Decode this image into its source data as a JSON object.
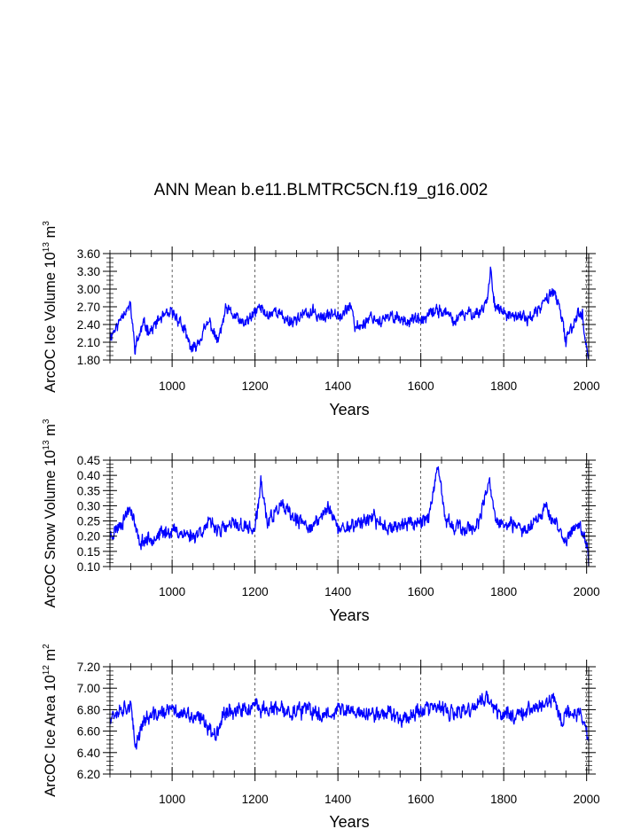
{
  "figure_title": "ANN Mean b.e11.BLMTRC5CN.f19_g16.002",
  "colors": {
    "series": "#0000ff",
    "axis": "#000000",
    "grid": "#000000"
  },
  "chart_data": [
    {
      "type": "line",
      "ylabel": {
        "prefix": "ArcOC Ice Volume 10",
        "exp": "13",
        "mid": " m",
        "unit_exp": "3"
      },
      "xlabel": "Years",
      "xlim": [
        850,
        2005
      ],
      "ylim": [
        1.8,
        3.6
      ],
      "xticks": [
        1000,
        1200,
        1400,
        1600,
        1800,
        2000
      ],
      "xtick_labels": [
        "1000",
        "1200",
        "1400",
        "1600",
        "1800",
        "2000"
      ],
      "yticks": [
        1.8,
        2.1,
        2.4,
        2.7,
        3.0,
        3.3,
        3.6
      ],
      "ytick_labels": [
        "1.80",
        "2.10",
        "2.40",
        "2.70",
        "3.00",
        "3.30",
        "3.60"
      ],
      "minor_x_step": 50,
      "minor_y_step": 0.075,
      "keyframes": [
        [
          850,
          2.2
        ],
        [
          870,
          2.4
        ],
        [
          880,
          2.6
        ],
        [
          900,
          2.7
        ],
        [
          910,
          2.0
        ],
        [
          930,
          2.4
        ],
        [
          950,
          2.3
        ],
        [
          970,
          2.5
        ],
        [
          990,
          2.55
        ],
        [
          1000,
          2.6
        ],
        [
          1020,
          2.45
        ],
        [
          1040,
          2.1
        ],
        [
          1050,
          1.95
        ],
        [
          1070,
          2.2
        ],
        [
          1090,
          2.45
        ],
        [
          1110,
          2.1
        ],
        [
          1130,
          2.65
        ],
        [
          1150,
          2.55
        ],
        [
          1170,
          2.4
        ],
        [
          1190,
          2.5
        ],
        [
          1210,
          2.7
        ],
        [
          1230,
          2.55
        ],
        [
          1250,
          2.65
        ],
        [
          1270,
          2.5
        ],
        [
          1290,
          2.45
        ],
        [
          1310,
          2.55
        ],
        [
          1340,
          2.6
        ],
        [
          1370,
          2.5
        ],
        [
          1390,
          2.65
        ],
        [
          1410,
          2.55
        ],
        [
          1430,
          2.75
        ],
        [
          1440,
          2.35
        ],
        [
          1460,
          2.4
        ],
        [
          1480,
          2.55
        ],
        [
          1500,
          2.45
        ],
        [
          1520,
          2.5
        ],
        [
          1540,
          2.55
        ],
        [
          1560,
          2.45
        ],
        [
          1580,
          2.5
        ],
        [
          1600,
          2.45
        ],
        [
          1620,
          2.55
        ],
        [
          1640,
          2.65
        ],
        [
          1660,
          2.6
        ],
        [
          1680,
          2.45
        ],
        [
          1700,
          2.55
        ],
        [
          1720,
          2.6
        ],
        [
          1740,
          2.6
        ],
        [
          1760,
          2.8
        ],
        [
          1768,
          3.32
        ],
        [
          1780,
          2.7
        ],
        [
          1800,
          2.6
        ],
        [
          1820,
          2.5
        ],
        [
          1840,
          2.55
        ],
        [
          1860,
          2.5
        ],
        [
          1880,
          2.6
        ],
        [
          1900,
          2.8
        ],
        [
          1920,
          3.0
        ],
        [
          1940,
          2.5
        ],
        [
          1950,
          2.1
        ],
        [
          1960,
          2.3
        ],
        [
          1980,
          2.6
        ],
        [
          1990,
          2.55
        ],
        [
          2000,
          2.0
        ],
        [
          2005,
          1.85
        ]
      ],
      "noise_amplitude": 0.14,
      "seed": 11
    },
    {
      "type": "line",
      "ylabel": {
        "prefix": "ArcOC Snow Volume 10",
        "exp": "13",
        "mid": " m",
        "unit_exp": "3"
      },
      "xlabel": "Years",
      "xlim": [
        850,
        2005
      ],
      "ylim": [
        0.1,
        0.45
      ],
      "xticks": [
        1000,
        1200,
        1400,
        1600,
        1800,
        2000
      ],
      "xtick_labels": [
        "1000",
        "1200",
        "1400",
        "1600",
        "1800",
        "2000"
      ],
      "yticks": [
        0.1,
        0.15,
        0.2,
        0.25,
        0.3,
        0.35,
        0.4,
        0.45
      ],
      "ytick_labels": [
        "0.10",
        "0.15",
        "0.20",
        "0.25",
        "0.30",
        "0.35",
        "0.40",
        "0.45"
      ],
      "minor_x_step": 50,
      "minor_y_step": 0.0125,
      "keyframes": [
        [
          850,
          0.2
        ],
        [
          880,
          0.25
        ],
        [
          900,
          0.3
        ],
        [
          920,
          0.18
        ],
        [
          960,
          0.2
        ],
        [
          1000,
          0.22
        ],
        [
          1050,
          0.2
        ],
        [
          1090,
          0.24
        ],
        [
          1120,
          0.22
        ],
        [
          1150,
          0.24
        ],
        [
          1200,
          0.22
        ],
        [
          1215,
          0.38
        ],
        [
          1230,
          0.24
        ],
        [
          1260,
          0.3
        ],
        [
          1300,
          0.25
        ],
        [
          1340,
          0.23
        ],
        [
          1380,
          0.3
        ],
        [
          1400,
          0.22
        ],
        [
          1440,
          0.24
        ],
        [
          1480,
          0.26
        ],
        [
          1520,
          0.23
        ],
        [
          1560,
          0.24
        ],
        [
          1600,
          0.25
        ],
        [
          1620,
          0.27
        ],
        [
          1642,
          0.42
        ],
        [
          1660,
          0.25
        ],
        [
          1700,
          0.22
        ],
        [
          1740,
          0.24
        ],
        [
          1766,
          0.38
        ],
        [
          1780,
          0.25
        ],
        [
          1800,
          0.24
        ],
        [
          1850,
          0.22
        ],
        [
          1880,
          0.26
        ],
        [
          1900,
          0.3
        ],
        [
          1920,
          0.25
        ],
        [
          1950,
          0.18
        ],
        [
          1980,
          0.25
        ],
        [
          1995,
          0.2
        ],
        [
          2005,
          0.12
        ]
      ],
      "noise_amplitude": 0.032,
      "seed": 23
    },
    {
      "type": "line",
      "ylabel": {
        "prefix": "ArcOC Ice Area 10",
        "exp": "12",
        "mid": " m",
        "unit_exp": "2"
      },
      "xlabel": "Years",
      "xlim": [
        850,
        2005
      ],
      "ylim": [
        6.2,
        7.2
      ],
      "xticks": [
        1000,
        1200,
        1400,
        1600,
        1800,
        2000
      ],
      "xtick_labels": [
        "1000",
        "1200",
        "1400",
        "1600",
        "1800",
        "2000"
      ],
      "yticks": [
        6.2,
        6.4,
        6.6,
        6.8,
        7.0,
        7.2
      ],
      "ytick_labels": [
        "6.20",
        "6.40",
        "6.60",
        "6.80",
        "7.00",
        "7.20"
      ],
      "minor_x_step": 50,
      "minor_y_step": 0.04,
      "keyframes": [
        [
          850,
          6.75
        ],
        [
          880,
          6.82
        ],
        [
          900,
          6.85
        ],
        [
          910,
          6.45
        ],
        [
          930,
          6.7
        ],
        [
          960,
          6.75
        ],
        [
          1000,
          6.8
        ],
        [
          1050,
          6.72
        ],
        [
          1080,
          6.7
        ],
        [
          1100,
          6.55
        ],
        [
          1130,
          6.8
        ],
        [
          1160,
          6.78
        ],
        [
          1200,
          6.82
        ],
        [
          1240,
          6.8
        ],
        [
          1280,
          6.78
        ],
        [
          1320,
          6.8
        ],
        [
          1360,
          6.75
        ],
        [
          1400,
          6.8
        ],
        [
          1440,
          6.78
        ],
        [
          1480,
          6.75
        ],
        [
          1520,
          6.78
        ],
        [
          1560,
          6.72
        ],
        [
          1600,
          6.8
        ],
        [
          1640,
          6.82
        ],
        [
          1680,
          6.75
        ],
        [
          1720,
          6.8
        ],
        [
          1760,
          6.92
        ],
        [
          1780,
          6.78
        ],
        [
          1820,
          6.75
        ],
        [
          1860,
          6.8
        ],
        [
          1900,
          6.85
        ],
        [
          1920,
          6.9
        ],
        [
          1940,
          6.7
        ],
        [
          1960,
          6.78
        ],
        [
          1990,
          6.75
        ],
        [
          2005,
          6.5
        ]
      ],
      "noise_amplitude": 0.1,
      "seed": 37
    }
  ]
}
